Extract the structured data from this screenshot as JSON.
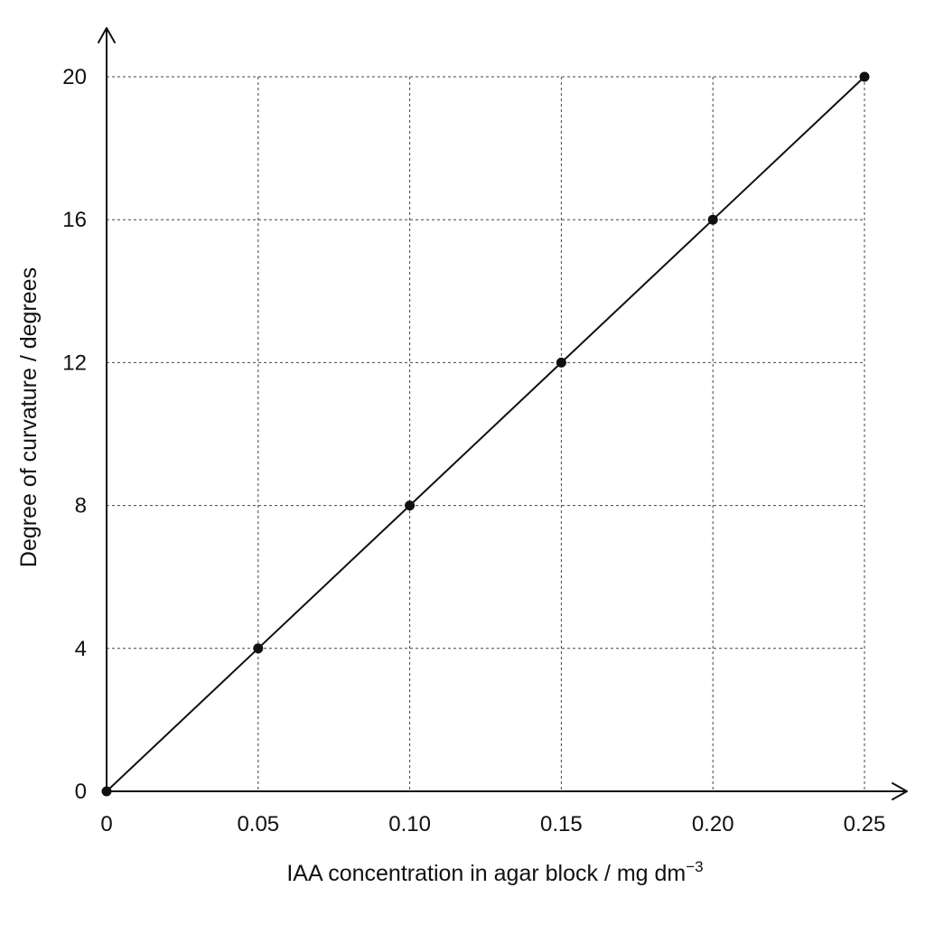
{
  "chart_data": {
    "type": "line",
    "title": "",
    "xlabel": "IAA concentration in agar block / mg dm",
    "xlabel_superscript": "−3",
    "ylabel": "Degree of curvature / degrees",
    "x_ticks": [
      "0",
      "0.05",
      "0.10",
      "0.15",
      "0.20",
      "0.25"
    ],
    "x_tick_values": [
      0,
      0.05,
      0.1,
      0.15,
      0.2,
      0.25
    ],
    "y_ticks": [
      "0",
      "4",
      "8",
      "12",
      "16",
      "20"
    ],
    "y_tick_values": [
      0,
      4,
      8,
      12,
      16,
      20
    ],
    "xlim": [
      0,
      0.25
    ],
    "ylim": [
      0,
      20
    ],
    "grid": true,
    "grid_style": "dotted",
    "axis_arrows": true,
    "series": [
      {
        "x": [
          0,
          0.05,
          0.1,
          0.15,
          0.2,
          0.25
        ],
        "y": [
          0,
          4,
          8,
          12,
          16,
          20
        ],
        "color": "#111111",
        "markers": true
      }
    ]
  }
}
